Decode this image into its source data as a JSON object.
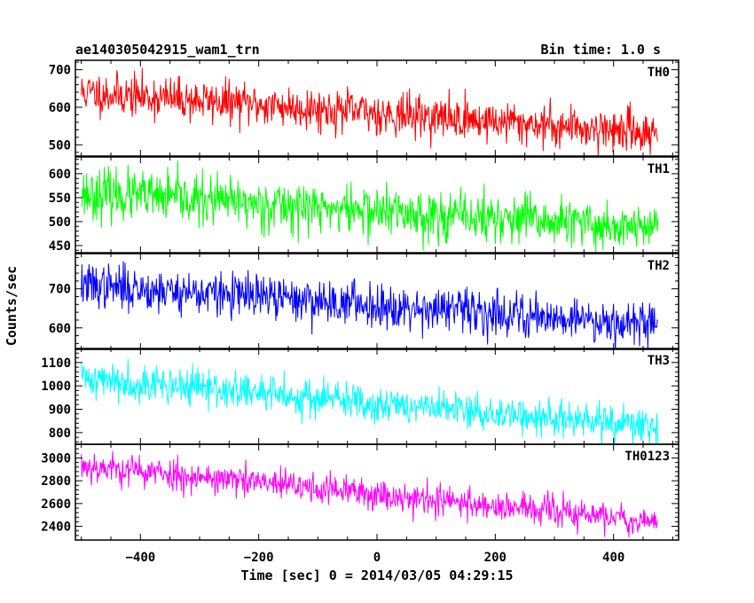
{
  "header": {
    "title": "ae140305042915_wam1_trn",
    "bin_time": "Bin time: 1.0 s"
  },
  "ylabel": "Counts/sec",
  "xlabel": "Time [sec] 0 = 2014/03/05 04:29:15",
  "chart_data": {
    "type": "line",
    "xlim": [
      -510,
      510
    ],
    "x_ticks": [
      -400,
      -200,
      0,
      200,
      400
    ],
    "series_x_range": [
      -500,
      475
    ],
    "bin_time_s": 1.0,
    "panels": [
      {
        "name": "TH0",
        "color": "#ff0000",
        "ylim": [
          470,
          725
        ],
        "yticks": [
          500,
          600,
          700
        ],
        "trend_start": 640,
        "trend_end": 532,
        "noise": 28,
        "seed": 11
      },
      {
        "name": "TH1",
        "color": "#00ff00",
        "ylim": [
          435,
          635
        ],
        "yticks": [
          450,
          500,
          550,
          600
        ],
        "trend_start": 560,
        "trend_end": 485,
        "noise": 26,
        "seed": 23
      },
      {
        "name": "TH2",
        "color": "#0000ff",
        "ylim": [
          545,
          790
        ],
        "yticks": [
          600,
          700
        ],
        "trend_start": 710,
        "trend_end": 610,
        "noise": 28,
        "seed": 37
      },
      {
        "name": "TH3",
        "color": "#00ffff",
        "ylim": [
          750,
          1160
        ],
        "yticks": [
          800,
          900,
          1000,
          1100
        ],
        "trend_start": 1035,
        "trend_end": 820,
        "noise": 40,
        "seed": 41
      },
      {
        "name": "TH0123",
        "color": "#ff00ff",
        "ylim": [
          2280,
          3120
        ],
        "yticks": [
          2400,
          2600,
          2800,
          3000
        ],
        "trend_start": 2935,
        "trend_end": 2440,
        "noise": 70,
        "seed": 53
      }
    ]
  }
}
